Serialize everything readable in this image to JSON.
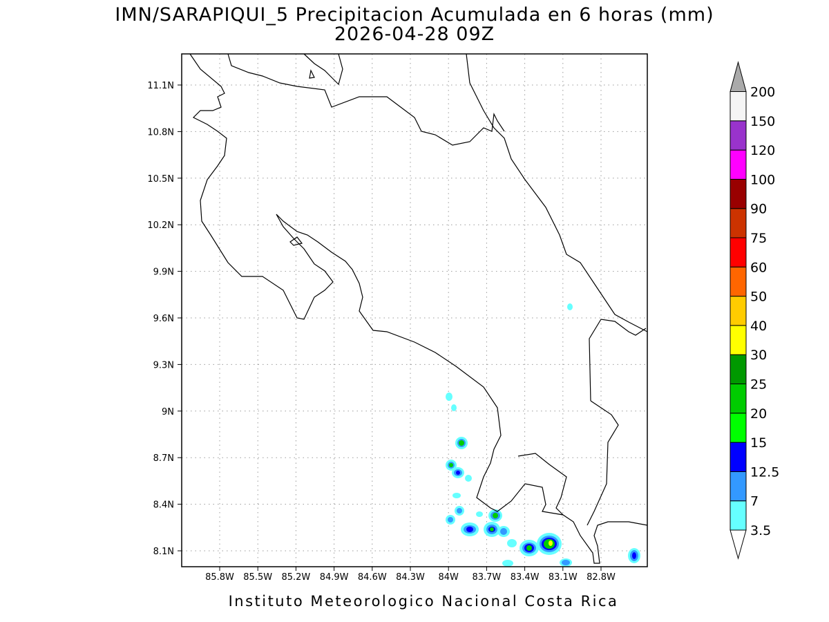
{
  "header": {
    "title": "IMN/SARAPIQUI_5 Precipitacion Acumulada en 6 horas (mm)",
    "subtitle": "2026-04-28 09Z"
  },
  "map": {
    "x_labels": [
      "85.8W",
      "85.5W",
      "85.2W",
      "84.9W",
      "84.6W",
      "84.3W",
      "84W",
      "83.7W",
      "83.4W",
      "83.1W",
      "82.8W"
    ],
    "y_labels": [
      "11.1N",
      "10.8N",
      "10.5N",
      "10.2N",
      "9.9N",
      "9.6N",
      "9.3N",
      "9N",
      "8.7N",
      "8.4N",
      "8.1N"
    ]
  },
  "colorbar": {
    "labels": [
      3.5,
      7,
      12.5,
      15,
      20,
      25,
      30,
      40,
      50,
      60,
      75,
      90,
      100,
      120,
      150,
      200
    ],
    "colors": [
      "#66ffff",
      "#3399ff",
      "#0000ff",
      "#00ff00",
      "#00cc00",
      "#009900",
      "#ffff00",
      "#ffcc00",
      "#ff6600",
      "#ff0000",
      "#cc3300",
      "#990000",
      "#ff00ff",
      "#9933cc",
      "#f5f5f5"
    ],
    "under_color": "#ffffff",
    "over_color": "#aaaaaa"
  },
  "footer": "Instituto Meteorologico Nacional Costa Rica"
}
